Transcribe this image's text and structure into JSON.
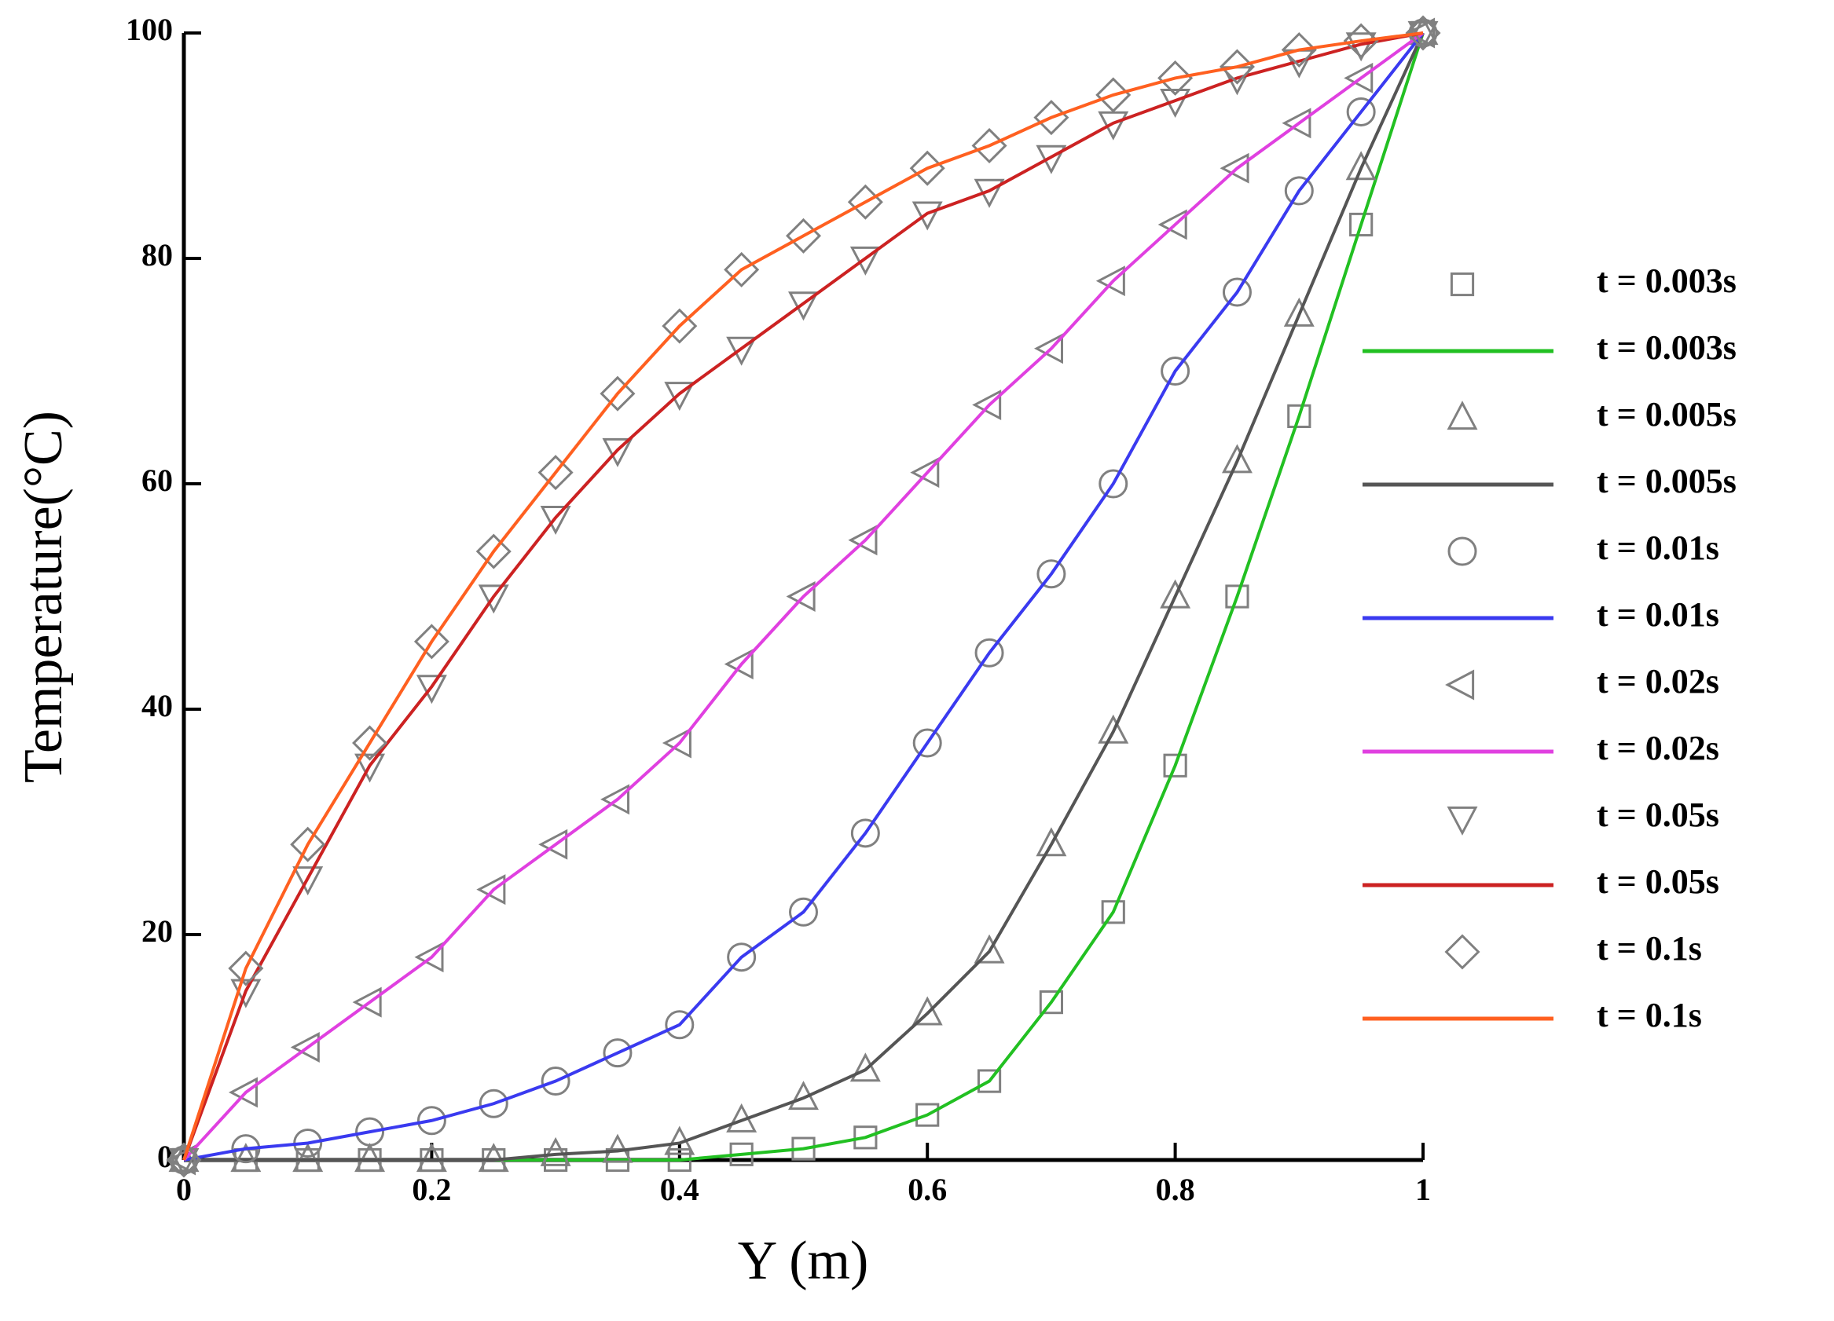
{
  "chart_data": {
    "type": "line",
    "xlabel": "Y (m)",
    "ylabel": "Temperature(°C)",
    "x": [
      0,
      0.05,
      0.1,
      0.15,
      0.2,
      0.25,
      0.3,
      0.35,
      0.4,
      0.45,
      0.5,
      0.55,
      0.6,
      0.65,
      0.7,
      0.75,
      0.8,
      0.85,
      0.9,
      0.95,
      1
    ],
    "xlim": [
      0,
      1
    ],
    "xticks": [
      0,
      0.2,
      0.4,
      0.6,
      0.8,
      1
    ],
    "ylim": [
      0,
      100
    ],
    "yticks": [
      0,
      20,
      40,
      60,
      80,
      100
    ],
    "legend": "right",
    "series": [
      {
        "name": "t = 0.003s",
        "marker": "square",
        "color": "#808080",
        "values": [
          0,
          0,
          0,
          0,
          0,
          0,
          0,
          0,
          0,
          0.5,
          1,
          2,
          4,
          7,
          14,
          22,
          35,
          50,
          66,
          83,
          100
        ]
      },
      {
        "name": "t = 0.003s",
        "color": "#22c022",
        "values": [
          0,
          0,
          0,
          0,
          0,
          0,
          0,
          0,
          0,
          0.5,
          1,
          2,
          4,
          7,
          14,
          22,
          35,
          50,
          66,
          83,
          100
        ]
      },
      {
        "name": "t = 0.005s",
        "marker": "triangle-up",
        "color": "#808080",
        "values": [
          0,
          0,
          0,
          0,
          0,
          0,
          0.5,
          0.8,
          1.5,
          3.5,
          5.5,
          8,
          13,
          18.5,
          28,
          38,
          50,
          62,
          75,
          88,
          100
        ]
      },
      {
        "name": "t = 0.005s",
        "color": "#555555",
        "values": [
          0,
          0,
          0,
          0,
          0,
          0,
          0.5,
          0.8,
          1.5,
          3.5,
          5.5,
          8,
          13,
          18.5,
          28,
          38,
          50,
          62,
          75,
          88,
          100
        ]
      },
      {
        "name": "t = 0.01s",
        "marker": "circle",
        "color": "#808080",
        "values": [
          0,
          1,
          1.5,
          2.5,
          3.5,
          5,
          7,
          9.5,
          12,
          18,
          22,
          29,
          37,
          45,
          52,
          60,
          70,
          77,
          86,
          93,
          100
        ]
      },
      {
        "name": "t = 0.01s",
        "color": "#3a3af0",
        "values": [
          0,
          1,
          1.5,
          2.5,
          3.5,
          5,
          7,
          9.5,
          12,
          18,
          22,
          29,
          37,
          45,
          52,
          60,
          70,
          77,
          86,
          93,
          100
        ]
      },
      {
        "name": "t = 0.02s",
        "marker": "triangle-left",
        "color": "#808080",
        "values": [
          0,
          6,
          10,
          14,
          18,
          24,
          28,
          32,
          37,
          44,
          50,
          55,
          61,
          67,
          72,
          78,
          83,
          88,
          92,
          96,
          100
        ]
      },
      {
        "name": "t = 0.02s",
        "color": "#e040e0",
        "values": [
          0,
          6,
          10,
          14,
          18,
          24,
          28,
          32,
          37,
          44,
          50,
          55,
          61,
          67,
          72,
          78,
          83,
          88,
          92,
          96,
          100
        ]
      },
      {
        "name": "t = 0.05s",
        "marker": "triangle-down",
        "color": "#808080",
        "values": [
          0,
          15,
          25,
          35,
          42,
          50,
          57,
          63,
          68,
          72,
          76,
          80,
          84,
          86,
          89,
          92,
          94,
          96,
          97.5,
          99,
          100
        ]
      },
      {
        "name": "t = 0.05s",
        "color": "#cc2222",
        "values": [
          0,
          15,
          25,
          35,
          42,
          50,
          57,
          63,
          68,
          72,
          76,
          80,
          84,
          86,
          89,
          92,
          94,
          96,
          97.5,
          99,
          100
        ]
      },
      {
        "name": "t = 0.1s",
        "marker": "diamond",
        "color": "#808080",
        "values": [
          0,
          17,
          28,
          37,
          46,
          54,
          61,
          68,
          74,
          79,
          82,
          85,
          88,
          90,
          92.5,
          94.5,
          96,
          97,
          98.5,
          99.3,
          100
        ]
      },
      {
        "name": "t = 0.1s",
        "color": "#ff6020",
        "values": [
          0,
          17,
          28,
          37,
          46,
          54,
          61,
          68,
          74,
          79,
          82,
          85,
          88,
          90,
          92.5,
          94.5,
          96,
          97,
          98.5,
          99.3,
          100
        ]
      }
    ]
  }
}
